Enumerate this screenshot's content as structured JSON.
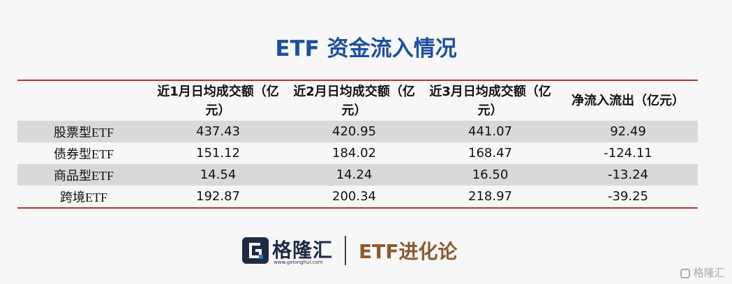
{
  "header": {
    "title": "ETF 资金流入情况"
  },
  "table": {
    "columns": [
      "近1月日均成交额（亿元）",
      "近2月日均成交额（亿元）",
      "近3月日均成交额（亿元）",
      "净流入流出（亿元）"
    ],
    "rows": [
      [
        "股票型ETF",
        "437.43",
        "420.95",
        "441.07",
        "92.49"
      ],
      [
        "债券型ETF",
        "151.12",
        "184.02",
        "168.47",
        "-124.11"
      ],
      [
        "商品型ETF",
        "14.54",
        "14.24",
        "16.50",
        "-13.24"
      ],
      [
        "跨境ETF",
        "192.87",
        "200.34",
        "218.97",
        "-39.25"
      ]
    ]
  },
  "footer": {
    "brand": "格隆汇",
    "url": "www.gelonghui.com",
    "column_name": "ETF进化论",
    "watermark": "格隆汇"
  }
}
